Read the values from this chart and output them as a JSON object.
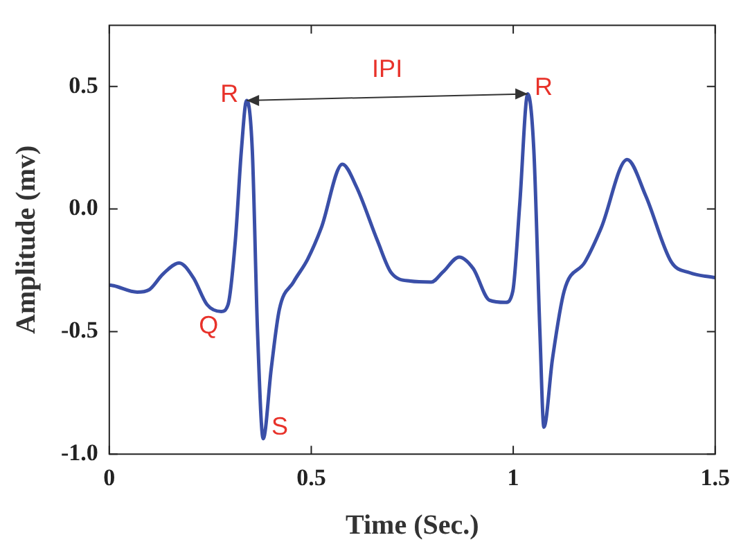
{
  "chart_data": {
    "type": "line",
    "xlabel": "Time (Sec.)",
    "ylabel": "Amplitude (mv)",
    "x": [
      0,
      0.011,
      0.069,
      0.098,
      0.133,
      0.173,
      0.208,
      0.242,
      0.277,
      0.294,
      0.312,
      0.327,
      0.34,
      0.354,
      0.367,
      0.381,
      0.401,
      0.421,
      0.456,
      0.491,
      0.525,
      0.577,
      0.612,
      0.664,
      0.698,
      0.745,
      0.797,
      0.826,
      0.866,
      0.901,
      0.941,
      0.981,
      0.999,
      1.016,
      1.036,
      1.051,
      1.066,
      1.076,
      1.097,
      1.126,
      1.178,
      1.218,
      1.282,
      1.328,
      1.391,
      1.437,
      1.5
    ],
    "series": [
      {
        "color": "#3a4fa8",
        "values": [
          -0.31,
          -0.313,
          -0.339,
          -0.33,
          -0.265,
          -0.22,
          -0.28,
          -0.39,
          -0.418,
          -0.39,
          -0.13,
          0.24,
          0.443,
          0.24,
          -0.5,
          -0.937,
          -0.65,
          -0.41,
          -0.298,
          -0.205,
          -0.076,
          0.183,
          0.09,
          -0.13,
          -0.26,
          -0.294,
          -0.298,
          -0.257,
          -0.196,
          -0.243,
          -0.372,
          -0.381,
          -0.335,
          0.017,
          0.47,
          0.24,
          -0.5,
          -0.89,
          -0.613,
          -0.335,
          -0.215,
          -0.076,
          0.202,
          0.054,
          -0.215,
          -0.26,
          -0.28
        ]
      }
    ],
    "xlim": [
      0,
      1.5
    ],
    "xticks": [
      0,
      0.5,
      1,
      1.5
    ],
    "ylim": [
      -1,
      0.75
    ],
    "yticks": [
      {
        "value": -1,
        "label": "-1.0"
      },
      {
        "value": -0.5,
        "label": "-0.5"
      },
      {
        "value": 0,
        "label": "0.0"
      },
      {
        "value": 0.5,
        "label": "0.5"
      }
    ],
    "grid": false,
    "legend": false,
    "marker": "none",
    "line_style": "solid",
    "annotations": [
      {
        "text": "R",
        "x": 0.34,
        "y": 0.443
      },
      {
        "text": "R",
        "x": 1.036,
        "y": 0.47
      },
      {
        "text": "Q",
        "x": 0.277,
        "y": -0.418
      },
      {
        "text": "S",
        "x": 0.381,
        "y": -0.937
      },
      "IPI"
    ]
  }
}
